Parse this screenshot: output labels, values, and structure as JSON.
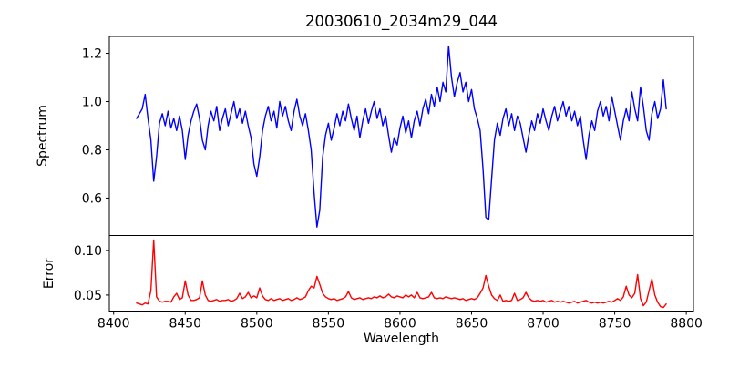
{
  "figure_title": "20030610_2034m29_044",
  "chart_data": [
    {
      "type": "line",
      "series_name": "spectrum",
      "title": "20030610_2034m29_044",
      "ylabel": "Spectrum",
      "color": "#0000ff",
      "grid": false,
      "x_start": 8416,
      "x_step": 2,
      "xlim": [
        8397,
        8805
      ],
      "ylim": [
        0.445,
        1.27
      ],
      "yticks": [
        1.2,
        1.0,
        0.8,
        0.6
      ],
      "ytick_labels": [
        "1.2",
        "1.0",
        "0.8",
        "0.6"
      ],
      "values": [
        0.93,
        0.95,
        0.97,
        1.03,
        0.93,
        0.84,
        0.67,
        0.77,
        0.91,
        0.95,
        0.9,
        0.96,
        0.89,
        0.93,
        0.88,
        0.94,
        0.88,
        0.76,
        0.86,
        0.92,
        0.96,
        0.99,
        0.93,
        0.84,
        0.8,
        0.9,
        0.96,
        0.92,
        0.98,
        0.88,
        0.93,
        0.97,
        0.9,
        0.95,
        1.0,
        0.93,
        0.97,
        0.91,
        0.96,
        0.9,
        0.85,
        0.74,
        0.69,
        0.77,
        0.88,
        0.94,
        0.98,
        0.92,
        0.96,
        0.89,
        1.0,
        0.94,
        0.98,
        0.92,
        0.88,
        0.96,
        1.01,
        0.94,
        0.9,
        0.95,
        0.88,
        0.8,
        0.62,
        0.48,
        0.55,
        0.77,
        0.86,
        0.91,
        0.84,
        0.89,
        0.95,
        0.9,
        0.96,
        0.92,
        0.99,
        0.93,
        0.88,
        0.94,
        0.85,
        0.92,
        0.97,
        0.91,
        0.96,
        1.0,
        0.93,
        0.97,
        0.9,
        0.94,
        0.86,
        0.79,
        0.85,
        0.82,
        0.89,
        0.94,
        0.87,
        0.92,
        0.85,
        0.92,
        0.96,
        0.9,
        0.97,
        1.01,
        0.95,
        1.03,
        0.98,
        1.06,
        1.0,
        1.08,
        1.04,
        1.23,
        1.1,
        1.02,
        1.08,
        1.12,
        1.04,
        1.08,
        1.0,
        1.05,
        0.97,
        0.93,
        0.88,
        0.72,
        0.52,
        0.51,
        0.68,
        0.84,
        0.91,
        0.86,
        0.93,
        0.97,
        0.9,
        0.95,
        0.88,
        0.94,
        0.91,
        0.85,
        0.79,
        0.86,
        0.92,
        0.88,
        0.95,
        0.91,
        0.97,
        0.92,
        0.88,
        0.94,
        0.98,
        0.92,
        0.96,
        1.0,
        0.94,
        0.98,
        0.92,
        0.96,
        0.9,
        0.94,
        0.84,
        0.76,
        0.86,
        0.92,
        0.88,
        0.96,
        1.0,
        0.94,
        0.98,
        0.92,
        1.02,
        0.96,
        0.9,
        0.84,
        0.92,
        0.97,
        0.92,
        1.04,
        0.97,
        0.92,
        1.06,
        0.98,
        0.88,
        0.84,
        0.95,
        1.0,
        0.93,
        0.97,
        1.09,
        0.97
      ]
    },
    {
      "type": "line",
      "series_name": "error",
      "ylabel": "Error",
      "xlabel": "Wavelength",
      "color": "#ff0000",
      "grid": false,
      "x_start": 8416,
      "x_step": 2,
      "xlim": [
        8397,
        8805
      ],
      "ylim": [
        0.032,
        0.117
      ],
      "yticks": [
        0.1,
        0.05
      ],
      "ytick_labels": [
        "0.10",
        "0.05"
      ],
      "xticks": [
        8400,
        8450,
        8500,
        8550,
        8600,
        8650,
        8700,
        8750,
        8800
      ],
      "xtick_labels": [
        "8400",
        "8450",
        "8500",
        "8550",
        "8600",
        "8650",
        "8700",
        "8750",
        "8800"
      ],
      "values": [
        0.041,
        0.04,
        0.039,
        0.041,
        0.04,
        0.055,
        0.112,
        0.048,
        0.043,
        0.042,
        0.043,
        0.043,
        0.042,
        0.048,
        0.052,
        0.045,
        0.047,
        0.066,
        0.05,
        0.044,
        0.044,
        0.045,
        0.047,
        0.066,
        0.05,
        0.044,
        0.043,
        0.044,
        0.045,
        0.043,
        0.044,
        0.044,
        0.045,
        0.043,
        0.044,
        0.046,
        0.052,
        0.046,
        0.048,
        0.053,
        0.047,
        0.049,
        0.047,
        0.058,
        0.049,
        0.045,
        0.044,
        0.046,
        0.044,
        0.045,
        0.046,
        0.044,
        0.045,
        0.046,
        0.044,
        0.045,
        0.047,
        0.045,
        0.046,
        0.048,
        0.055,
        0.06,
        0.058,
        0.071,
        0.062,
        0.052,
        0.048,
        0.046,
        0.045,
        0.046,
        0.044,
        0.045,
        0.046,
        0.048,
        0.054,
        0.047,
        0.045,
        0.046,
        0.047,
        0.045,
        0.046,
        0.047,
        0.046,
        0.048,
        0.047,
        0.049,
        0.047,
        0.048,
        0.051,
        0.048,
        0.047,
        0.049,
        0.048,
        0.047,
        0.05,
        0.048,
        0.05,
        0.047,
        0.053,
        0.047,
        0.046,
        0.047,
        0.048,
        0.053,
        0.047,
        0.046,
        0.047,
        0.046,
        0.048,
        0.047,
        0.046,
        0.047,
        0.046,
        0.045,
        0.046,
        0.044,
        0.045,
        0.046,
        0.045,
        0.047,
        0.052,
        0.058,
        0.072,
        0.06,
        0.05,
        0.046,
        0.044,
        0.05,
        0.043,
        0.044,
        0.043,
        0.044,
        0.052,
        0.044,
        0.045,
        0.047,
        0.053,
        0.047,
        0.044,
        0.043,
        0.044,
        0.043,
        0.044,
        0.042,
        0.043,
        0.044,
        0.042,
        0.043,
        0.042,
        0.043,
        0.042,
        0.041,
        0.042,
        0.043,
        0.041,
        0.042,
        0.043,
        0.044,
        0.042,
        0.041,
        0.042,
        0.041,
        0.042,
        0.041,
        0.042,
        0.043,
        0.042,
        0.044,
        0.046,
        0.044,
        0.048,
        0.06,
        0.05,
        0.047,
        0.052,
        0.073,
        0.046,
        0.038,
        0.042,
        0.055,
        0.068,
        0.05,
        0.042,
        0.037,
        0.036,
        0.04
      ]
    }
  ]
}
